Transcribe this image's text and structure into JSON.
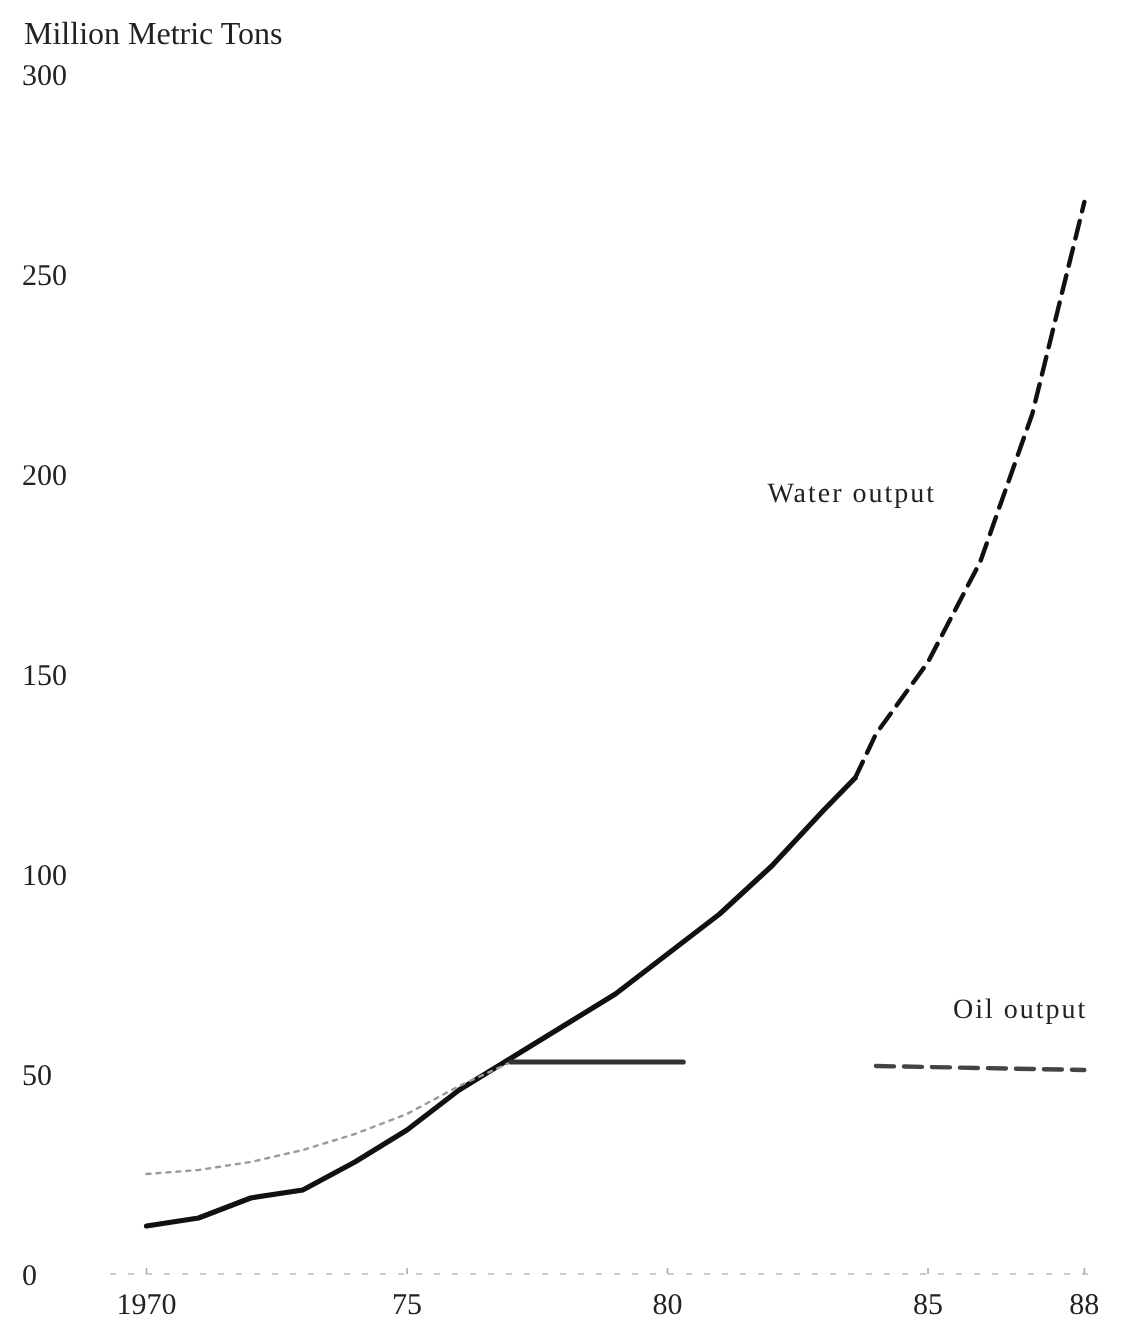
{
  "chart_data": {
    "type": "line",
    "ylabel": "Million Metric Tons",
    "xlim": [
      1969.3,
      1988.3
    ],
    "ylim": [
      0,
      300
    ],
    "xticks": [
      {
        "value": 1970,
        "label": "1970"
      },
      {
        "value": 1975,
        "label": "75"
      },
      {
        "value": 1980,
        "label": "80"
      },
      {
        "value": 1985,
        "label": "85"
      },
      {
        "value": 1988,
        "label": "88"
      }
    ],
    "yticks": [
      0,
      50,
      100,
      150,
      200,
      250,
      300
    ],
    "grid": false,
    "series": [
      {
        "color": "#111111",
        "line_style": "solid",
        "x": [
          1970,
          1971,
          1972,
          1973,
          1974,
          1975,
          1976,
          1977,
          1978,
          1979,
          1980,
          1981,
          1982,
          1983,
          1983.6
        ],
        "values": [
          12,
          14,
          19,
          21,
          28,
          36,
          46,
          54,
          62,
          70,
          80,
          90,
          102,
          116,
          124
        ]
      },
      {
        "name": "Water output",
        "color": "#111111",
        "line_style": "dashed",
        "x": [
          1983.6,
          1984,
          1985,
          1986,
          1987,
          1988
        ],
        "values": [
          124,
          135,
          153,
          178,
          215,
          268
        ]
      },
      {
        "color": "#9a9a9a",
        "line_style": "dotted",
        "x": [
          1970,
          1971,
          1972,
          1973,
          1974,
          1975,
          1976,
          1977
        ],
        "values": [
          25,
          26,
          28,
          31,
          35,
          40,
          47,
          53
        ]
      },
      {
        "color": "#333333",
        "line_style": "solid",
        "x": [
          1977,
          1980.3
        ],
        "values": [
          53,
          53
        ]
      },
      {
        "name": "Oil output",
        "color": "#444444",
        "line_style": "dashed",
        "x": [
          1984,
          1988
        ],
        "values": [
          52,
          51
        ]
      }
    ]
  }
}
